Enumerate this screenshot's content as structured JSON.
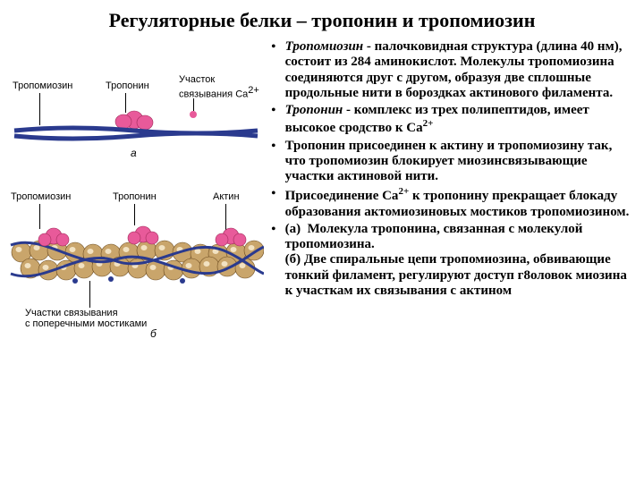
{
  "title": "Регуляторные белки – тропонин и тропомиозин",
  "bullets": [
    "<i>Тропомиозин</i> - палочковидная структура (длина 40 нм), состоит из 284 аминокислот. Молекулы тропомиозина соединяются друг с другом, образуя две сплошные продольные нити в бороздках актинового филамента.",
    "<i>Тропонин</i> - комплекс из трех полипептидов, имеет высокое сродство к Ca<span class='sup'>2+</span>",
    "Тропонин присоединен к актину и тропомиозину так, что тропомиозин блокирует миозинсвязывающие участки актиновой нити.",
    "Присоединение Ca<span class='sup'>2+</span> к тропонину прекращает блокаду образования актомиозиновых мостиков тропомиозином.",
    "(а) &nbsp;Молекула тропонина, связанная с молекулой тропомиозина.<br>(б) Две спиральные цепи тропомиозина, обвивающие тонкий филамент, регулируют доступ г8оловок миозина к участкам их связывания с актином"
  ],
  "diagramA": {
    "labels": {
      "tropomyosin": "Тропомиозин",
      "troponin": "Тропонин",
      "ca_site": "Участок\nсвязывания Ca²⁺"
    },
    "figletter": "а",
    "colors": {
      "tropomyosin": "#2a3a8e",
      "troponin": "#e85a9a"
    }
  },
  "diagramB": {
    "labels": {
      "tropomyosin": "Тропомиозин",
      "troponin": "Тропонин",
      "actin": "Актин",
      "binding_sites": "Участки связывания\nс поперечными мостиками"
    },
    "figletter": "б",
    "colors": {
      "actin": "#c9a56b",
      "actin_hl": "#f2e2c2",
      "tropomyosin": "#2a3a8e",
      "troponin": "#e85a9a"
    }
  }
}
